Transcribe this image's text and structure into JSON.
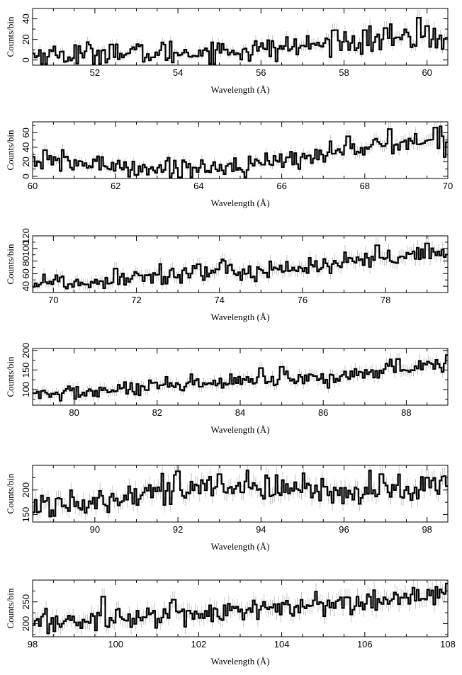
{
  "chart_data": [
    {
      "type": "line",
      "style": "step-with-errorbars",
      "xlabel": "Wavelength (Å)",
      "ylabel": "Counts/bin",
      "xlim": [
        50.5,
        60.5
      ],
      "ylim": [
        -5,
        50
      ],
      "xticks": [
        52,
        54,
        56,
        58,
        60
      ],
      "yticks": [
        0,
        20,
        40
      ],
      "trend": [
        [
          50.5,
          5
        ],
        [
          53,
          6
        ],
        [
          56,
          10
        ],
        [
          58,
          17
        ],
        [
          60.5,
          22
        ]
      ],
      "scatter": 6,
      "spikes": [
        [
          52.4,
          15
        ],
        [
          57.8,
          29
        ],
        [
          58.5,
          29
        ],
        [
          59.0,
          31
        ],
        [
          59.8,
          41
        ],
        [
          60.0,
          33
        ]
      ]
    },
    {
      "type": "line",
      "style": "step-with-errorbars",
      "xlabel": "Wavelength (Å)",
      "ylabel": "Counts/bin",
      "xlim": [
        60,
        70
      ],
      "ylim": [
        -3,
        75
      ],
      "xticks": [
        60,
        62,
        64,
        66,
        68,
        70
      ],
      "yticks": [
        0,
        20,
        40,
        60
      ],
      "trend": [
        [
          60,
          20
        ],
        [
          61,
          18
        ],
        [
          62,
          15
        ],
        [
          63,
          10
        ],
        [
          64,
          12
        ],
        [
          65,
          15
        ],
        [
          66,
          20
        ],
        [
          67,
          32
        ],
        [
          68,
          40
        ],
        [
          69,
          45
        ],
        [
          70,
          50
        ]
      ],
      "scatter": 7,
      "spikes": [
        [
          60.3,
          36
        ],
        [
          67.6,
          55
        ],
        [
          68.6,
          65
        ],
        [
          69.7,
          67
        ]
      ]
    },
    {
      "type": "line",
      "style": "step-with-errorbars",
      "xlabel": "Wavelength (Å)",
      "ylabel": "Counts/bin",
      "xlim": [
        69.5,
        79.5
      ],
      "ylim": [
        30,
        120
      ],
      "xticks": [
        70,
        72,
        74,
        76,
        78
      ],
      "yticks": [
        40,
        60,
        80,
        100,
        120
      ],
      "trend": [
        [
          69.5,
          48
        ],
        [
          71,
          45
        ],
        [
          72,
          58
        ],
        [
          74,
          62
        ],
        [
          76,
          70
        ],
        [
          78,
          82
        ],
        [
          79.5,
          92
        ]
      ],
      "scatter": 8,
      "spikes": [
        [
          71.5,
          68
        ],
        [
          73.5,
          75
        ],
        [
          77.8,
          105
        ],
        [
          79.0,
          108
        ]
      ]
    },
    {
      "type": "line",
      "style": "step-with-errorbars",
      "xlabel": "Wavelength (Å)",
      "ylabel": "Counts/bin",
      "xlim": [
        79,
        89
      ],
      "ylim": [
        60,
        205
      ],
      "xticks": [
        80,
        82,
        84,
        86,
        88
      ],
      "yticks": [
        100,
        150,
        200
      ],
      "trend": [
        [
          79,
          85
        ],
        [
          80,
          92
        ],
        [
          82,
          105
        ],
        [
          84,
          120
        ],
        [
          86,
          125
        ],
        [
          87,
          145
        ],
        [
          89,
          165
        ]
      ],
      "scatter": 10,
      "spikes": [
        [
          84.5,
          155
        ],
        [
          85.0,
          158
        ],
        [
          87.8,
          178
        ],
        [
          89.0,
          188
        ]
      ]
    },
    {
      "type": "line",
      "style": "step-with-errorbars",
      "xlabel": "Wavelength (Å)",
      "ylabel": "Counts/bin",
      "xlim": [
        88.5,
        98.5
      ],
      "ylim": [
        135,
        250
      ],
      "xticks": [
        90,
        92,
        94,
        96,
        98
      ],
      "yticks": [
        150,
        200
      ],
      "trend": [
        [
          88.5,
          165
        ],
        [
          90,
          182
        ],
        [
          91,
          195
        ],
        [
          92,
          202
        ],
        [
          93,
          205
        ],
        [
          95,
          200
        ],
        [
          97,
          198
        ],
        [
          98.5,
          210
        ]
      ],
      "scatter": 14,
      "spikes": [
        [
          92.0,
          238
        ],
        [
          93.0,
          232
        ],
        [
          96.9,
          232
        ],
        [
          98.0,
          225
        ]
      ]
    },
    {
      "type": "line",
      "style": "step-with-errorbars",
      "xlabel": "Wavelength (Å)",
      "ylabel": "Counts/bin",
      "xlim": [
        98,
        108
      ],
      "ylim": [
        170,
        300
      ],
      "xticks": [
        98,
        100,
        102,
        104,
        106,
        108
      ],
      "yticks": [
        200,
        250
      ],
      "trend": [
        [
          98,
          200
        ],
        [
          100,
          212
        ],
        [
          102,
          225
        ],
        [
          104,
          235
        ],
        [
          106,
          250
        ],
        [
          108,
          268
        ]
      ],
      "scatter": 13,
      "spikes": [
        [
          99.7,
          262
        ],
        [
          101.4,
          255
        ],
        [
          108.0,
          292
        ]
      ]
    }
  ]
}
